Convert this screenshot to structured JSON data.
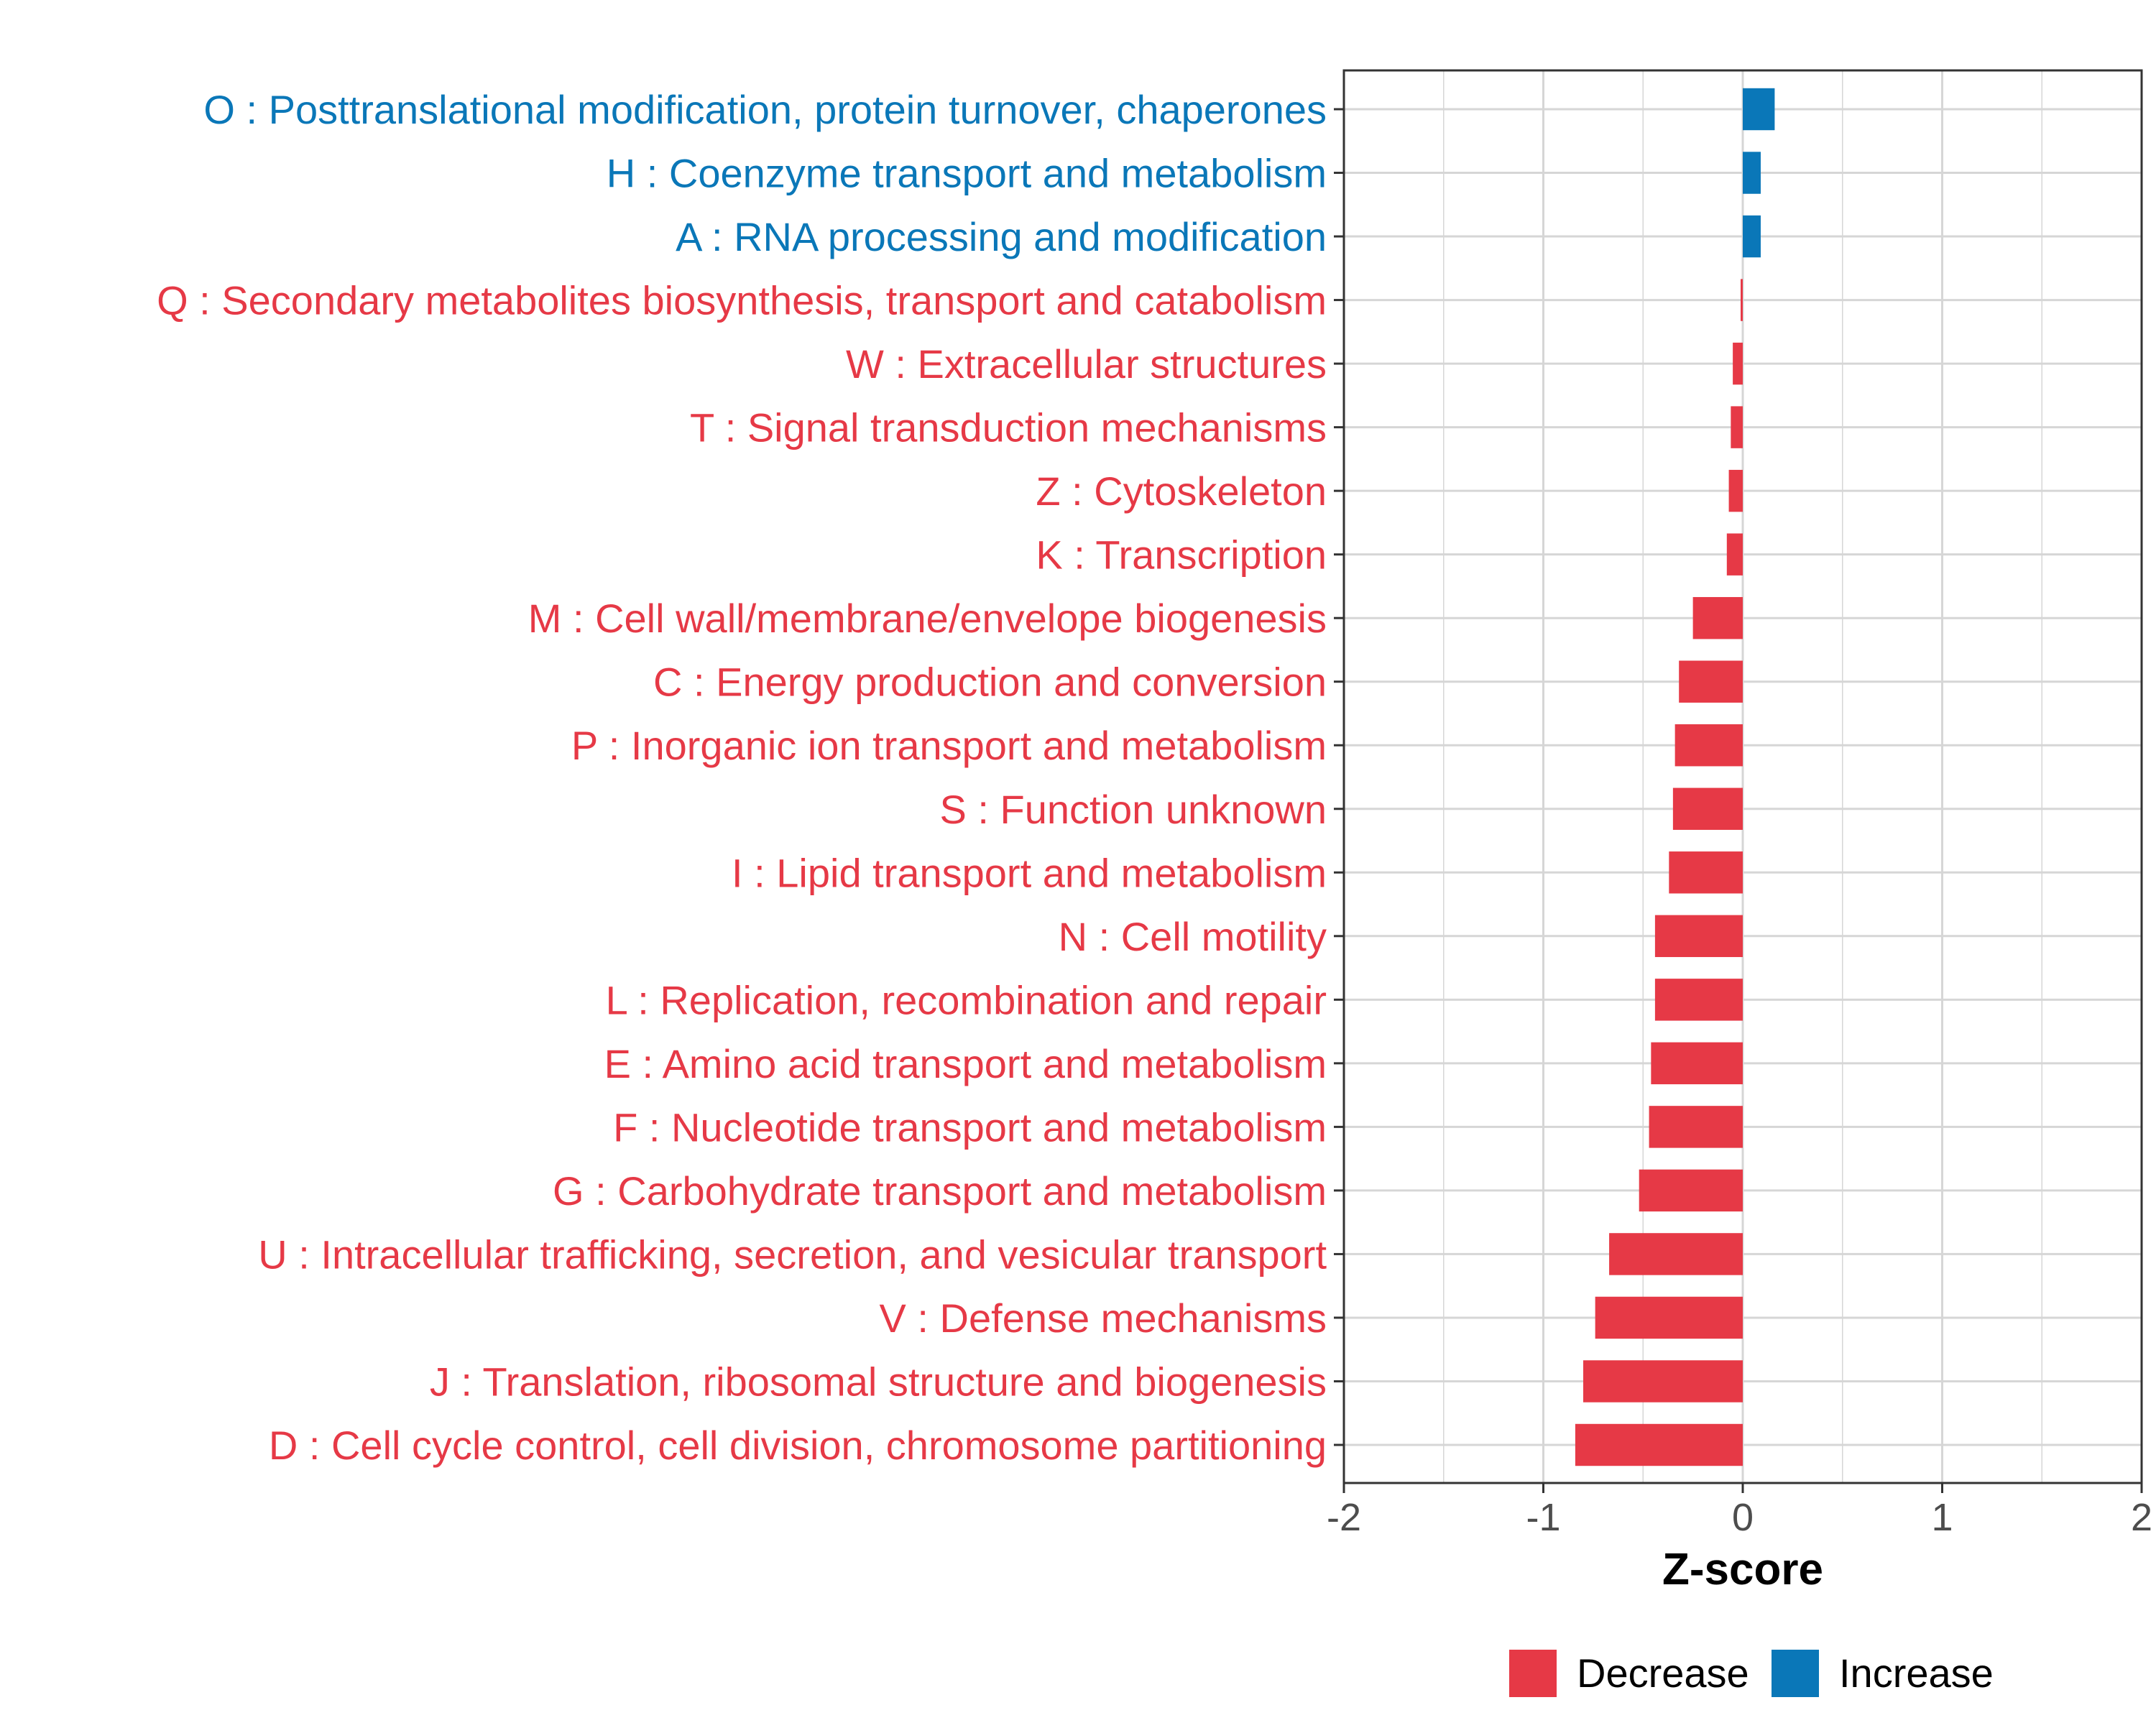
{
  "chart_data": {
    "type": "bar",
    "orientation": "horizontal",
    "title": "",
    "xlabel": "Z-score",
    "ylabel": "",
    "xlim": [
      -2,
      2
    ],
    "xticks": [
      -2,
      -1,
      0,
      1,
      2
    ],
    "xtick_labels": [
      "-2",
      "-1",
      "0",
      "1",
      "2"
    ],
    "grid": true,
    "legend_position": "bottom",
    "legend": [
      {
        "name": "Decrease",
        "color": "#e63946"
      },
      {
        "name": "Increase",
        "color": "#0a77b8"
      }
    ],
    "colors": {
      "Decrease": "#e63946",
      "Increase": "#0a77b8"
    },
    "categories": [
      "O : Posttranslational modification, protein turnover, chaperones",
      "H : Coenzyme transport and metabolism",
      "A : RNA processing and modification",
      "Q : Secondary metabolites biosynthesis, transport and catabolism",
      "W : Extracellular structures",
      "T : Signal transduction mechanisms",
      "Z : Cytoskeleton",
      "K : Transcription",
      "M : Cell wall/membrane/envelope biogenesis",
      "C : Energy production and conversion",
      "P : Inorganic ion transport and metabolism",
      "S : Function unknown",
      "I : Lipid transport and metabolism",
      "N : Cell motility",
      "L : Replication, recombination and repair",
      "E : Amino acid transport and metabolism",
      "F : Nucleotide transport and metabolism",
      "G : Carbohydrate transport and metabolism",
      "U : Intracellular trafficking, secretion, and vesicular transport",
      "V : Defense mechanisms",
      "J : Translation, ribosomal structure and biogenesis",
      "D : Cell cycle control, cell division, chromosome partitioning"
    ],
    "values": [
      0.16,
      0.09,
      0.09,
      -0.01,
      -0.05,
      -0.06,
      -0.07,
      -0.08,
      -0.25,
      -0.32,
      -0.34,
      -0.35,
      -0.37,
      -0.44,
      -0.44,
      -0.46,
      -0.47,
      -0.52,
      -0.67,
      -0.74,
      -0.8,
      -0.84
    ],
    "groups": [
      "Increase",
      "Increase",
      "Increase",
      "Decrease",
      "Decrease",
      "Decrease",
      "Decrease",
      "Decrease",
      "Decrease",
      "Decrease",
      "Decrease",
      "Decrease",
      "Decrease",
      "Decrease",
      "Decrease",
      "Decrease",
      "Decrease",
      "Decrease",
      "Decrease",
      "Decrease",
      "Decrease",
      "Decrease"
    ]
  }
}
